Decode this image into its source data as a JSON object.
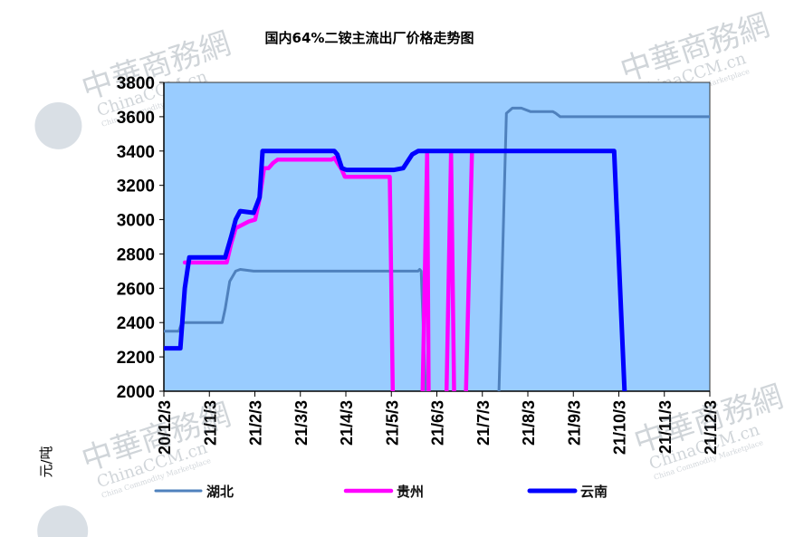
{
  "chart_data": {
    "type": "line",
    "title": "国内64%二铵主流出厂价格走势图",
    "ylabel": "元/吨",
    "xlabel": "",
    "ylim": [
      2000,
      3800
    ],
    "yticks": [
      2000,
      2200,
      2400,
      2600,
      2800,
      3000,
      3200,
      3400,
      3600,
      3800
    ],
    "xlim": [
      "2020-12-03",
      "2021-12-03"
    ],
    "x_ticks": [
      "20/12/3",
      "21/1/3",
      "21/2/3",
      "21/3/3",
      "21/4/3",
      "21/5/3",
      "21/6/3",
      "21/7/3",
      "21/8/3",
      "21/9/3",
      "21/10/3",
      "21/11/3",
      "21/12/3"
    ],
    "plot_background": "#99CCFF",
    "grid": false,
    "legend_position": "bottom",
    "series": [
      {
        "name": "湖北",
        "color": "#4F81BD",
        "points": [
          [
            "2020-12-03",
            2350
          ],
          [
            "2020-12-13",
            2350
          ],
          [
            "2020-12-15",
            2400
          ],
          [
            "2021-01-03",
            2400
          ],
          [
            "2021-01-11",
            2400
          ],
          [
            "2021-01-13",
            2480
          ],
          [
            "2021-01-16",
            2640
          ],
          [
            "2021-01-20",
            2700
          ],
          [
            "2021-01-23",
            2710
          ],
          [
            "2021-02-01",
            2700
          ],
          [
            "2021-05-22",
            2700
          ],
          [
            "2021-05-23",
            2710
          ],
          [
            "2021-05-24",
            2700
          ],
          [
            "2021-05-27",
            2000
          ]
        ],
        "second_segment": [
          [
            "2021-07-15",
            2000
          ],
          [
            "2021-07-20",
            3620
          ],
          [
            "2021-07-24",
            3650
          ],
          [
            "2021-07-30",
            3650
          ],
          [
            "2021-08-05",
            3630
          ],
          [
            "2021-08-20",
            3630
          ],
          [
            "2021-08-22",
            3620
          ],
          [
            "2021-08-25",
            3600
          ],
          [
            "2021-09-20",
            3600
          ],
          [
            "2021-10-01",
            3600
          ],
          [
            "2021-12-03",
            3600
          ]
        ]
      },
      {
        "name": "贵州",
        "color": "#FF00FF",
        "points": [
          [
            "2020-12-17",
            2750
          ],
          [
            "2021-01-03",
            2750
          ],
          [
            "2021-01-14",
            2750
          ],
          [
            "2021-01-17",
            2860
          ],
          [
            "2021-01-20",
            2950
          ],
          [
            "2021-01-29",
            2990
          ],
          [
            "2021-02-02",
            3000
          ],
          [
            "2021-02-05",
            3120
          ],
          [
            "2021-02-08",
            3300
          ],
          [
            "2021-02-11",
            3300
          ],
          [
            "2021-02-14",
            3330
          ],
          [
            "2021-02-17",
            3350
          ],
          [
            "2021-03-25",
            3350
          ],
          [
            "2021-03-27",
            3360
          ],
          [
            "2021-04-01",
            3290
          ],
          [
            "2021-04-03",
            3250
          ],
          [
            "2021-04-30",
            3250
          ],
          [
            "2021-05-03",
            3250
          ],
          [
            "2021-05-05",
            2000
          ]
        ],
        "segments_extra": [
          [
            [
              "2021-05-25",
              2000
            ],
            [
              "2021-05-28",
              3400
            ],
            [
              "2021-05-29",
              2000
            ]
          ],
          [
            [
              "2021-06-10",
              2000
            ],
            [
              "2021-06-13",
              3400
            ],
            [
              "2021-06-15",
              2000
            ]
          ],
          [
            [
              "2021-06-23",
              2000
            ],
            [
              "2021-06-27",
              3400
            ],
            [
              "2021-06-28",
              3400
            ]
          ]
        ]
      },
      {
        "name": "云南",
        "color": "#0000FF",
        "points": [
          [
            "2020-12-03",
            2250
          ],
          [
            "2020-12-14",
            2250
          ],
          [
            "2020-12-17",
            2600
          ],
          [
            "2020-12-20",
            2780
          ],
          [
            "2021-01-03",
            2780
          ],
          [
            "2021-01-13",
            2780
          ],
          [
            "2021-01-17",
            2900
          ],
          [
            "2021-01-20",
            3000
          ],
          [
            "2021-01-23",
            3050
          ],
          [
            "2021-02-01",
            3040
          ],
          [
            "2021-02-05",
            3130
          ],
          [
            "2021-02-07",
            3400
          ],
          [
            "2021-02-10",
            3400
          ],
          [
            "2021-03-27",
            3400
          ],
          [
            "2021-03-29",
            3380
          ],
          [
            "2021-04-01",
            3300
          ],
          [
            "2021-04-04",
            3290
          ],
          [
            "2021-05-06",
            3290
          ],
          [
            "2021-05-12",
            3300
          ],
          [
            "2021-05-18",
            3380
          ],
          [
            "2021-05-22",
            3400
          ],
          [
            "2021-06-01",
            3400
          ],
          [
            "2021-09-28",
            3400
          ],
          [
            "2021-09-30",
            3400
          ],
          [
            "2021-10-07",
            2000
          ]
        ]
      }
    ]
  },
  "watermark": {
    "line1": "中華商務網",
    "line2": "ChinaCCM.cn",
    "line3": "China Commodity Marketplace"
  }
}
